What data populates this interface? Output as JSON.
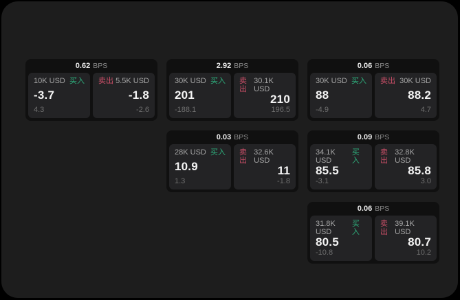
{
  "theme": {
    "page_bg": "#000000",
    "panel_bg": "#1d1d1d",
    "card_bg": "#101010",
    "cell_bg": "#232325",
    "value_color": "#ededed",
    "unit_color": "#8c8c8c",
    "size_color": "#a6a6a6",
    "price_color": "#f4f4f4",
    "sub_color": "#6f6f6f",
    "buy_color": "#2eae7c",
    "sell_color": "#cb4f68"
  },
  "labels": {
    "bps": "BPS",
    "buy": "买入",
    "sell": "卖出"
  },
  "cards": [
    {
      "bps": "0.62",
      "buy": {
        "size": "10K USD",
        "price": "-3.7",
        "sub": "4.3"
      },
      "sell": {
        "size": "5.5K USD",
        "price": "-1.8",
        "sub": "-2.6"
      }
    },
    {
      "bps": "2.92",
      "buy": {
        "size": "30K USD",
        "price": "201",
        "sub": "-188.1"
      },
      "sell": {
        "size": "30.1K USD",
        "price": "210",
        "sub": "196.5"
      }
    },
    {
      "bps": "0.06",
      "buy": {
        "size": "30K USD",
        "price": "88",
        "sub": "-4.9"
      },
      "sell": {
        "size": "30K USD",
        "price": "88.2",
        "sub": "4.7"
      }
    },
    {
      "bps": "0.03",
      "buy": {
        "size": "28K USD",
        "price": "10.9",
        "sub": "1.3"
      },
      "sell": {
        "size": "32.6K USD",
        "price": "11",
        "sub": "-1.8"
      }
    },
    {
      "bps": "0.09",
      "buy": {
        "size": "34.1K USD",
        "price": "85.5",
        "sub": "-3.1"
      },
      "sell": {
        "size": "32.8K USD",
        "price": "85.8",
        "sub": "3.0"
      }
    },
    {
      "bps": "0.06",
      "buy": {
        "size": "31.8K USD",
        "price": "80.5",
        "sub": "-10.8"
      },
      "sell": {
        "size": "39.1K USD",
        "price": "80.7",
        "sub": "10.2"
      }
    }
  ]
}
